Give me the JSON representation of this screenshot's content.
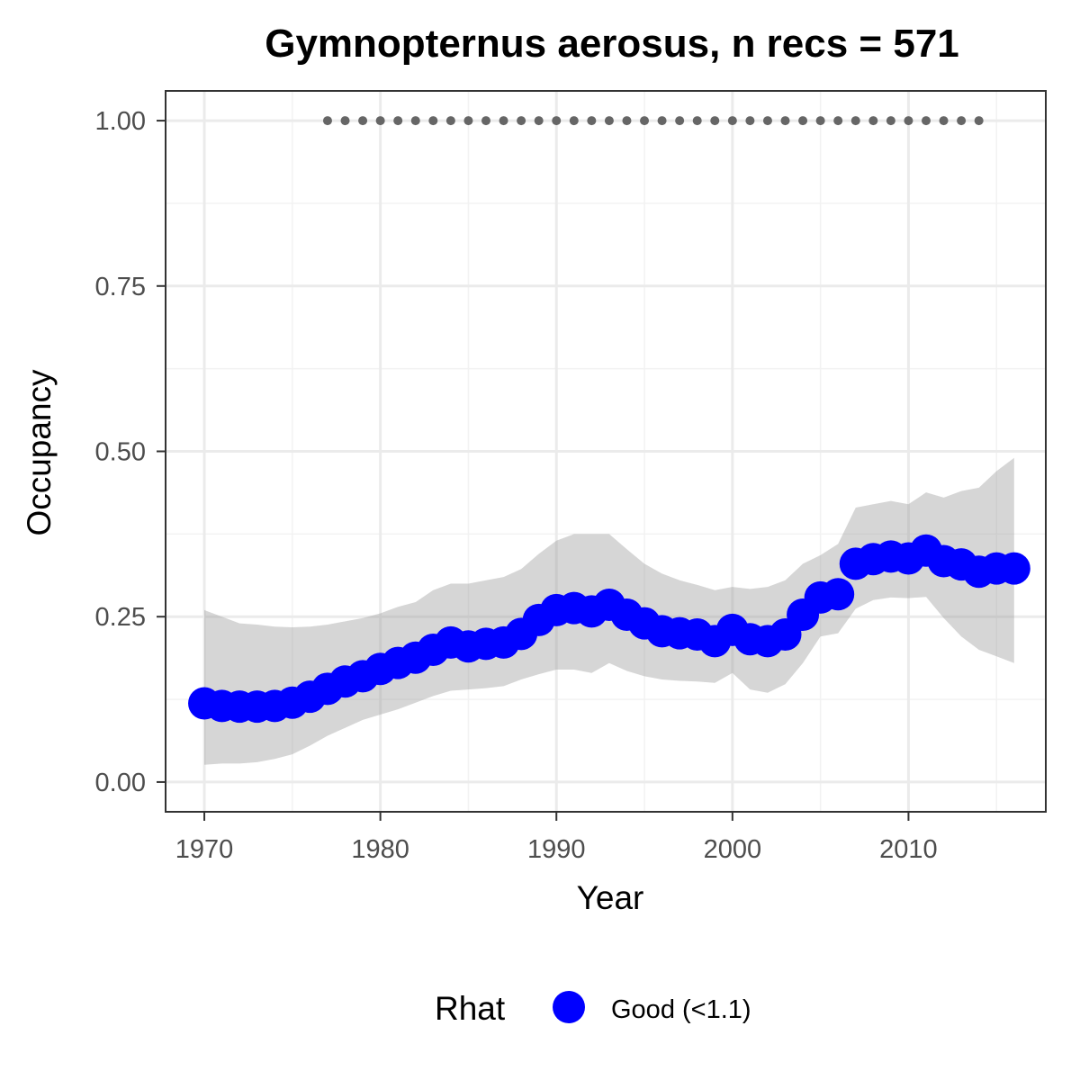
{
  "chart_data": {
    "type": "line",
    "title": "Gymnopternus aerosus, n recs = 571",
    "xlabel": "Year",
    "ylabel": "Occupancy",
    "xlim": [
      1967.8,
      2017.8
    ],
    "ylim": [
      -0.045,
      1.045
    ],
    "x_ticks": [
      1970,
      1980,
      1990,
      2000,
      2010
    ],
    "x_tick_labels": [
      "1970",
      "1980",
      "1990",
      "2000",
      "2010"
    ],
    "y_ticks": [
      0,
      0.25,
      0.5,
      0.75,
      1.0
    ],
    "y_tick_labels": [
      "0.00",
      "0.25",
      "0.50",
      "0.75",
      "1.00"
    ],
    "grid": true,
    "legend": {
      "title": "Rhat",
      "placement": "bottom",
      "entries": [
        {
          "label": "Good (<1.1)",
          "color": "#0000ff"
        }
      ]
    },
    "series": [
      {
        "color": "#0000ff",
        "x": [
          1970,
          1971,
          1972,
          1973,
          1974,
          1975,
          1976,
          1977,
          1978,
          1979,
          1980,
          1981,
          1982,
          1983,
          1984,
          1985,
          1986,
          1987,
          1988,
          1989,
          1990,
          1991,
          1992,
          1993,
          1994,
          1995,
          1996,
          1997,
          1998,
          1999,
          2000,
          2001,
          2002,
          2003,
          2004,
          2005,
          2006,
          2007,
          2008,
          2009,
          2010,
          2011,
          2012,
          2013,
          2014,
          2015,
          2016
        ],
        "y": [
          0.119,
          0.115,
          0.114,
          0.114,
          0.115,
          0.12,
          0.129,
          0.141,
          0.152,
          0.16,
          0.171,
          0.18,
          0.188,
          0.2,
          0.211,
          0.205,
          0.209,
          0.211,
          0.224,
          0.245,
          0.26,
          0.263,
          0.258,
          0.268,
          0.253,
          0.24,
          0.228,
          0.225,
          0.223,
          0.213,
          0.23,
          0.216,
          0.213,
          0.223,
          0.253,
          0.279,
          0.284,
          0.33,
          0.337,
          0.341,
          0.338,
          0.35,
          0.334,
          0.329,
          0.318,
          0.323,
          0.323
        ],
        "lower": [
          0.026,
          0.028,
          0.028,
          0.03,
          0.035,
          0.042,
          0.055,
          0.07,
          0.082,
          0.094,
          0.102,
          0.11,
          0.12,
          0.13,
          0.138,
          0.14,
          0.142,
          0.145,
          0.155,
          0.163,
          0.17,
          0.17,
          0.165,
          0.18,
          0.168,
          0.16,
          0.155,
          0.153,
          0.152,
          0.15,
          0.165,
          0.14,
          0.135,
          0.148,
          0.18,
          0.22,
          0.225,
          0.262,
          0.275,
          0.279,
          0.278,
          0.28,
          0.248,
          0.22,
          0.2,
          0.19,
          0.18
        ],
        "upper": [
          0.26,
          0.25,
          0.24,
          0.238,
          0.235,
          0.234,
          0.235,
          0.238,
          0.243,
          0.248,
          0.255,
          0.265,
          0.272,
          0.29,
          0.3,
          0.3,
          0.305,
          0.31,
          0.322,
          0.345,
          0.365,
          0.375,
          0.375,
          0.375,
          0.352,
          0.33,
          0.315,
          0.305,
          0.298,
          0.29,
          0.295,
          0.292,
          0.295,
          0.305,
          0.33,
          0.343,
          0.36,
          0.415,
          0.42,
          0.425,
          0.42,
          0.438,
          0.43,
          0.44,
          0.445,
          0.47,
          0.49
        ]
      }
    ],
    "record_points": {
      "color": "#666666",
      "x": [
        1977,
        1978,
        1979,
        1980,
        1981,
        1982,
        1983,
        1984,
        1985,
        1986,
        1987,
        1988,
        1989,
        1990,
        1991,
        1992,
        1993,
        1994,
        1995,
        1996,
        1997,
        1998,
        1999,
        2000,
        2001,
        2002,
        2003,
        2004,
        2005,
        2006,
        2007,
        2008,
        2009,
        2010,
        2011,
        2012,
        2013,
        2014
      ],
      "y": 1.0
    }
  }
}
